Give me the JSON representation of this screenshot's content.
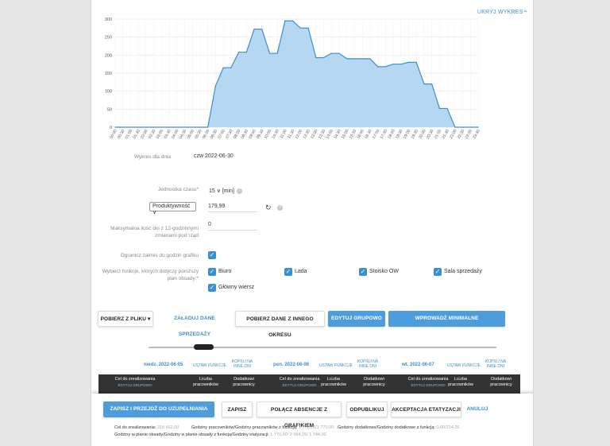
{
  "chart_toggle": {
    "label": "UKRYJ WYKRES"
  },
  "chart_data": {
    "type": "area",
    "x": [
      "00:00",
      "00:30",
      "01:00",
      "01:30",
      "02:00",
      "02:30",
      "03:00",
      "03:30",
      "04:00",
      "04:30",
      "05:00",
      "05:30",
      "06:00",
      "06:30",
      "07:00",
      "07:30",
      "08:00",
      "08:30",
      "09:00",
      "09:30",
      "10:00",
      "10:30",
      "11:00",
      "11:30",
      "12:00",
      "12:30",
      "13:00",
      "13:30",
      "14:00",
      "14:30",
      "15:00",
      "15:30",
      "16:00",
      "16:30",
      "17:00",
      "17:30",
      "18:00",
      "18:30",
      "19:00",
      "19:30",
      "20:00",
      "20:30",
      "21:00",
      "21:30",
      "22:00",
      "22:30",
      "23:00",
      "23:30"
    ],
    "values": [
      0,
      0,
      0,
      0,
      0,
      0,
      0,
      0,
      0,
      0,
      0,
      0,
      0,
      115,
      165,
      165,
      208,
      208,
      272,
      272,
      205,
      205,
      295,
      295,
      275,
      275,
      193,
      193,
      205,
      205,
      190,
      190,
      190,
      190,
      168,
      168,
      175,
      175,
      180,
      180,
      120,
      120,
      52,
      52,
      0,
      0,
      0,
      0
    ],
    "yticks": [
      "0",
      "50",
      "100",
      "150",
      "200",
      "250",
      "300"
    ],
    "ylim": [
      0,
      300
    ],
    "color": "#3a8fd1",
    "fill": "#b5d7f2"
  },
  "form": {
    "chart_day_label": "Wykres dla dnia",
    "chart_day_value": "czw 2022-06-30",
    "time_unit_label": "Jednostka czasu*",
    "time_unit_value": "15",
    "time_unit_suffix": "[min]",
    "productivity_select": "Produktywność",
    "productivity_value": "179,99",
    "max_days_label": "Maksymalna ilość dni z 12-godzinnymi zmianami pod rząd",
    "max_days_value": "0",
    "limit_label": "Ogranicz zakres do godzin grafiku",
    "functions_label": "Wybierz funkcje, których dotyczy poniższy plan obsady:*",
    "functions": [
      "Biuro",
      "Lada",
      "Stoisko OW",
      "Sala sprzedaży",
      "Główny wiersz"
    ]
  },
  "toolbar": {
    "load_file": "POBIERZ Z PLIKU",
    "load_sales": "ZAŁADUJ DANE SPRZEDAŻY",
    "load_other": "POBIERZ DANE Z INNEGO OKRESU",
    "group_edit": "EDYTUJ GRUPOWO",
    "min_demand": "WPROWADŹ MINIMALNE ZAPOTRZEBOWANIE"
  },
  "days": [
    {
      "date": "niedz. 2022-06-05",
      "set_fn": "USTAW FUNKCJE",
      "copy": "KOPIUJ NA INNE DNI"
    },
    {
      "date": "pon. 2022-06-06",
      "set_fn": "USTAW FUNKCJE",
      "copy": "KOPIUJ NA INNE DNI"
    },
    {
      "date": "wt. 2022-06-07",
      "set_fn": "USTAW FUNKCJE",
      "copy": "KOPIUJ NA INNE DNI"
    }
  ],
  "table": {
    "goal": "Cel do zrealizowania",
    "group_edit": "EDYTUJ GRUPOWO",
    "employees": "Liczba pracowników",
    "extra": "Dodatkowi pracownicy"
  },
  "footer": {
    "save_go": "ZAPISZ I PRZEJDŹ DO UZUPEŁNIANIA GRAFIKU",
    "save": "ZAPISZ",
    "merge": "POŁĄCZ ABSENCJE Z GRAFIKIEM",
    "unpublish": "ODPUBLIKUJ",
    "accept": "AKCEPTACJA ETATYZACJI",
    "cancel": "ANULUJ",
    "goal_label": "Cel do zrealizowania:",
    "goal_value": "318 462,00",
    "hours_fn_label": "Godziny pracowników/Godziny pracowników z funkcją:",
    "hours_fn_value": "1 770,00/1 770,00",
    "extra_label": "Godziny dodatkowe/Godziny dodatkowe z funkcją:",
    "extra_value": "0,00/314,25",
    "plan_label": "Godziny w planie obsady/Godziny w planie obsady z funkcją/Godziny etatyzacji:",
    "plan_value": "1 770,00/ 2 084,25/ 1 744,00"
  }
}
